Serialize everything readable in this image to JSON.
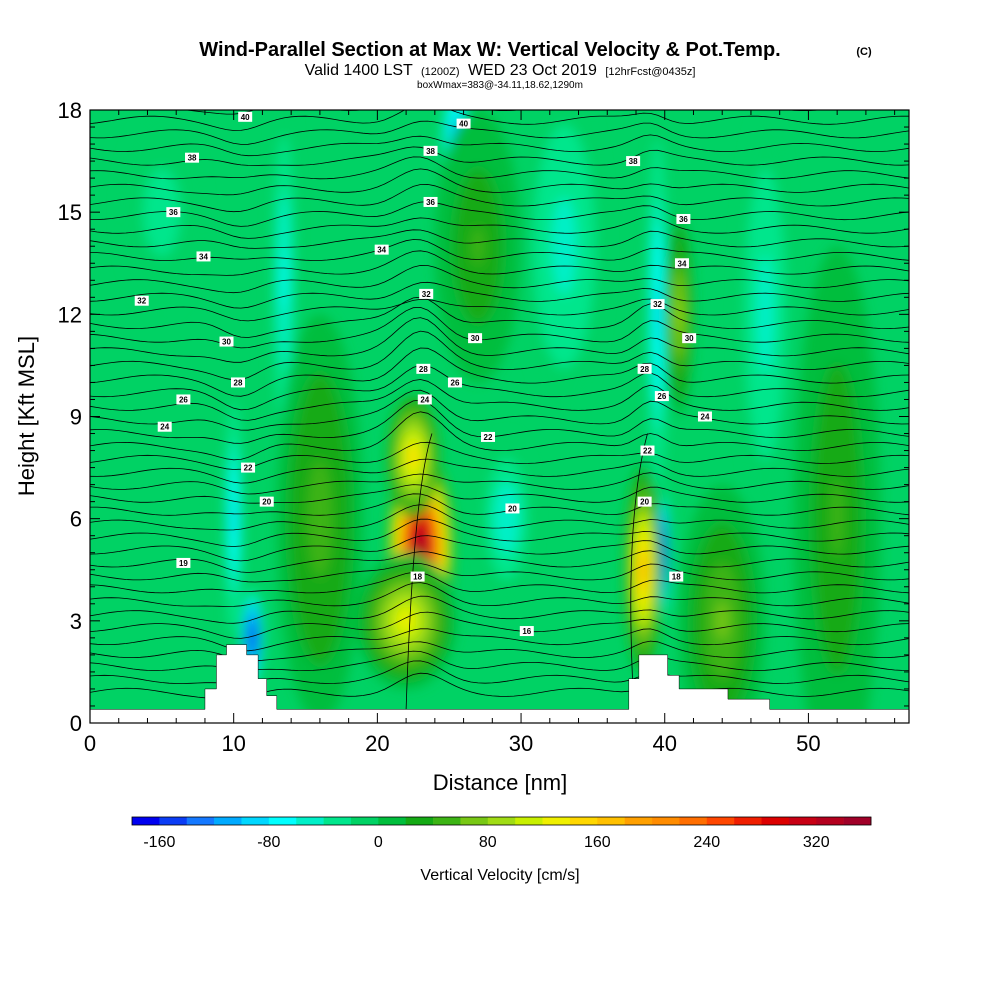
{
  "title": {
    "main": "Wind-Parallel Section at Max W: Vertical Velocity & Pot.Temp.",
    "copyright": "(C)",
    "valid_prefix": "Valid 1400 LST",
    "valid_utc": "(1200Z)",
    "valid_date": "WED 23 Oct 2019",
    "forecast": "[12hrFcst@0435z]",
    "boxinfo": "boxWmax=383@-34.11,18.62,1290m"
  },
  "chart_data": {
    "type": "heatmap",
    "xlabel": "Distance [nm]",
    "ylabel": "Height [Kft MSL]",
    "xlim": [
      0,
      57
    ],
    "ylim": [
      0,
      18
    ],
    "xticks": [
      "0",
      "10",
      "20",
      "30",
      "40",
      "50"
    ],
    "yticks": [
      "0",
      "3",
      "6",
      "9",
      "12",
      "15",
      "18"
    ],
    "colorbar": {
      "label": "Vertical Velocity [cm/s]",
      "min": -180,
      "max": 360,
      "step": 20,
      "ticks": [
        "-160",
        "-80",
        "0",
        "80",
        "160",
        "240",
        "320"
      ],
      "colors": [
        "#0000f0",
        "#0a3cf5",
        "#1478ff",
        "#00aaff",
        "#00d7ff",
        "#00ffff",
        "#00f0c8",
        "#00e68c",
        "#00d264",
        "#00be3c",
        "#14aa14",
        "#3cb414",
        "#78c814",
        "#a0dc14",
        "#c8f000",
        "#f0f000",
        "#ffd700",
        "#ffc000",
        "#ffa000",
        "#ff8c00",
        "#ff6e00",
        "#ff4600",
        "#f01e00",
        "#dc0000",
        "#c80014",
        "#b4001e",
        "#a00028"
      ]
    },
    "terrain_kft": [
      {
        "x": 0,
        "h": 0.4
      },
      {
        "x": 8,
        "h": 0.4
      },
      {
        "x": 8,
        "h": 1.0
      },
      {
        "x": 8.8,
        "h": 1.0
      },
      {
        "x": 8.8,
        "h": 2.0
      },
      {
        "x": 9.5,
        "h": 2.0
      },
      {
        "x": 9.5,
        "h": 2.3
      },
      {
        "x": 10.9,
        "h": 2.3
      },
      {
        "x": 10.9,
        "h": 2.0
      },
      {
        "x": 11.7,
        "h": 2.0
      },
      {
        "x": 11.7,
        "h": 1.3
      },
      {
        "x": 12.3,
        "h": 1.3
      },
      {
        "x": 12.3,
        "h": 0.8
      },
      {
        "x": 13,
        "h": 0.8
      },
      {
        "x": 13,
        "h": 0.4
      },
      {
        "x": 37.5,
        "h": 0.4
      },
      {
        "x": 37.5,
        "h": 1.3
      },
      {
        "x": 38.2,
        "h": 1.3
      },
      {
        "x": 38.2,
        "h": 2.0
      },
      {
        "x": 40.2,
        "h": 2.0
      },
      {
        "x": 40.2,
        "h": 1.4
      },
      {
        "x": 41,
        "h": 1.4
      },
      {
        "x": 41,
        "h": 1.0
      },
      {
        "x": 44.4,
        "h": 1.0
      },
      {
        "x": 44.4,
        "h": 0.7
      },
      {
        "x": 47.3,
        "h": 0.7
      },
      {
        "x": 47.3,
        "h": 0.4
      },
      {
        "x": 57,
        "h": 0.4
      }
    ],
    "updrafts": [
      {
        "x": 23,
        "y": 5.2,
        "w": 2.3,
        "h": 2.8,
        "v": 370
      },
      {
        "x": 22,
        "y": 3.0,
        "w": 3.5,
        "h": 2.0,
        "v": 120
      },
      {
        "x": 22.5,
        "y": 7.8,
        "w": 1.8,
        "h": 1.8,
        "v": 150
      },
      {
        "x": 38.5,
        "y": 4.5,
        "w": 1.3,
        "h": 3.0,
        "v": 180
      },
      {
        "x": 41,
        "y": 12,
        "w": 1.0,
        "h": 3.0,
        "v": 90
      },
      {
        "x": 44,
        "y": 3,
        "w": 3,
        "h": 4,
        "v": 60
      },
      {
        "x": 16,
        "y": 6,
        "w": 3,
        "h": 6,
        "v": 50
      },
      {
        "x": 27,
        "y": 14,
        "w": 3,
        "h": 4,
        "v": 40
      },
      {
        "x": 52,
        "y": 6,
        "w": 3,
        "h": 8,
        "v": 45
      }
    ],
    "downdrafts": [
      {
        "x": 11.3,
        "y": 2.5,
        "w": 0.8,
        "h": 1.5,
        "v": -190
      },
      {
        "x": 10,
        "y": 6,
        "w": 0.7,
        "h": 4,
        "v": -90
      },
      {
        "x": 39.9,
        "y": 5,
        "w": 0.45,
        "h": 2.0,
        "v": -190
      },
      {
        "x": 39.5,
        "y": 12,
        "w": 0.8,
        "h": 6,
        "v": -90
      },
      {
        "x": 25.5,
        "y": 17,
        "w": 1.2,
        "h": 2,
        "v": -120
      },
      {
        "x": 13.5,
        "y": 13,
        "w": 1.0,
        "h": 6,
        "v": -70
      },
      {
        "x": 29,
        "y": 6,
        "w": 2,
        "h": 2.5,
        "v": -60
      },
      {
        "x": 33,
        "y": 14,
        "w": 3,
        "h": 5,
        "v": -50
      },
      {
        "x": 47,
        "y": 12,
        "w": 2,
        "h": 6,
        "v": -50
      },
      {
        "x": 5,
        "y": 15,
        "w": 3,
        "h": 3,
        "v": -30
      }
    ],
    "isentrope_labels": [
      {
        "text": "40",
        "x": 10.8,
        "y": 17.8
      },
      {
        "text": "40",
        "x": 26,
        "y": 17.6
      },
      {
        "text": "38",
        "x": 7.1,
        "y": 16.6
      },
      {
        "text": "38",
        "x": 23.7,
        "y": 16.8
      },
      {
        "text": "38",
        "x": 37.8,
        "y": 16.5
      },
      {
        "text": "36",
        "x": 5.8,
        "y": 15.0
      },
      {
        "text": "36",
        "x": 23.7,
        "y": 15.3
      },
      {
        "text": "36",
        "x": 41.3,
        "y": 14.8
      },
      {
        "text": "34",
        "x": 7.9,
        "y": 13.7
      },
      {
        "text": "34",
        "x": 20.3,
        "y": 13.9
      },
      {
        "text": "34",
        "x": 41.2,
        "y": 13.5
      },
      {
        "text": "32",
        "x": 3.6,
        "y": 12.4
      },
      {
        "text": "32",
        "x": 23.4,
        "y": 12.6
      },
      {
        "text": "32",
        "x": 39.5,
        "y": 12.3
      },
      {
        "text": "30",
        "x": 9.5,
        "y": 11.2
      },
      {
        "text": "30",
        "x": 26.8,
        "y": 11.3
      },
      {
        "text": "30",
        "x": 41.7,
        "y": 11.3
      },
      {
        "text": "28",
        "x": 10.3,
        "y": 10.0
      },
      {
        "text": "28",
        "x": 23.2,
        "y": 10.4
      },
      {
        "text": "28",
        "x": 38.6,
        "y": 10.4
      },
      {
        "text": "26",
        "x": 6.5,
        "y": 9.5
      },
      {
        "text": "26",
        "x": 25.4,
        "y": 10.0
      },
      {
        "text": "26",
        "x": 39.8,
        "y": 9.6
      },
      {
        "text": "24",
        "x": 5.2,
        "y": 8.7
      },
      {
        "text": "24",
        "x": 23.3,
        "y": 9.5
      },
      {
        "text": "24",
        "x": 42.8,
        "y": 9.0
      },
      {
        "text": "22",
        "x": 11.0,
        "y": 7.5
      },
      {
        "text": "22",
        "x": 27.7,
        "y": 8.4
      },
      {
        "text": "22",
        "x": 38.8,
        "y": 8.0
      },
      {
        "text": "20",
        "x": 12.3,
        "y": 6.5
      },
      {
        "text": "20",
        "x": 29.4,
        "y": 6.3
      },
      {
        "text": "20",
        "x": 38.6,
        "y": 6.5
      },
      {
        "text": "19",
        "x": 6.5,
        "y": 4.7
      },
      {
        "text": "18",
        "x": 22.8,
        "y": 4.3
      },
      {
        "text": "18",
        "x": 40.8,
        "y": 4.3
      },
      {
        "text": "16",
        "x": 30.4,
        "y": 2.7
      }
    ]
  }
}
